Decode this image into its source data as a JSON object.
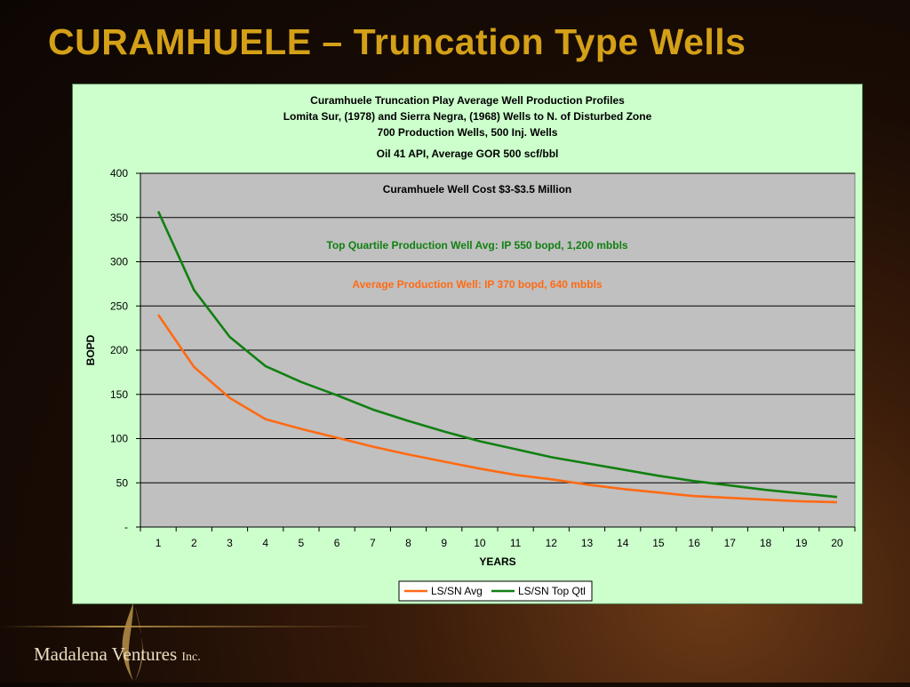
{
  "slide": {
    "title": "CURAMHUELE – Truncation Type Wells",
    "brand_name": "Madalena Ventures",
    "brand_suffix": "Inc."
  },
  "colors": {
    "title": "#d4a017",
    "panel_bg": "#ccffcc",
    "plot_bg": "#c0c0c0",
    "avg_series": "#ff6a13",
    "top_series": "#118011"
  },
  "chart_data": {
    "type": "line",
    "title_lines": [
      "Curamhuele Truncation Play Average Well Production Profiles",
      "Lomita Sur, (1978) and Sierra Negra, (1968) Wells to N. of Disturbed Zone",
      "700 Production Wells, 500 Inj. Wells",
      "Oil 41 API, Average GOR 500 scf/bbl"
    ],
    "annotations": [
      {
        "text": "Curamhuele Well Cost $3-$3.5 Million",
        "color": "#000000"
      },
      {
        "text": "Top Quartile Production Well Avg: IP 550 bopd, 1,200 mbbls",
        "color": "#118011"
      },
      {
        "text": "Average Production Well: IP 370 bopd, 640 mbbls",
        "color": "#ff6a13"
      }
    ],
    "xlabel": "YEARS",
    "ylabel": "BOPD",
    "ylim": [
      0,
      400
    ],
    "yticks": [
      "-",
      "50",
      "100",
      "150",
      "200",
      "250",
      "300",
      "350",
      "400"
    ],
    "x": [
      1,
      2,
      3,
      4,
      5,
      6,
      7,
      8,
      9,
      10,
      11,
      12,
      13,
      14,
      15,
      16,
      17,
      18,
      19,
      20
    ],
    "series": [
      {
        "name": "LS/SN Avg",
        "color": "#ff6a13",
        "values": [
          240,
          181,
          146,
          122,
          111,
          101,
          91,
          82,
          74,
          66,
          59,
          54,
          48,
          43,
          39,
          35,
          33,
          31,
          29,
          28
        ]
      },
      {
        "name": "LS/SN Top Qtl",
        "color": "#118011",
        "values": [
          357,
          268,
          215,
          182,
          164,
          149,
          133,
          120,
          108,
          97,
          88,
          79,
          72,
          65,
          58,
          52,
          47,
          42,
          38,
          34
        ]
      }
    ],
    "grid": true,
    "legend_position": "bottom"
  }
}
